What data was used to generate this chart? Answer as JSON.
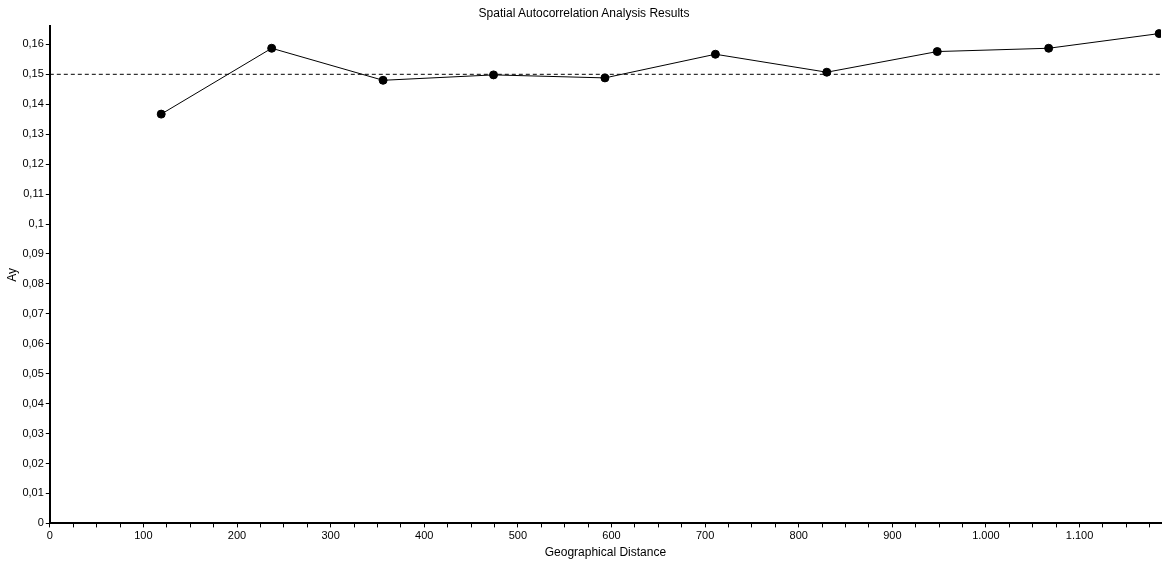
{
  "chart_data": {
    "type": "line",
    "title": "Spatial Autocorrelation Analysis Results",
    "xlabel": "Geographical Distance",
    "ylabel": "Ay",
    "x": [
      119,
      237,
      356,
      474,
      593,
      711,
      830,
      948,
      1067,
      1185
    ],
    "series": [
      {
        "color": "#000000",
        "values": [
          0.1367,
          0.1587,
          0.148,
          0.1498,
          0.1488,
          0.1567,
          0.1507,
          0.1576,
          0.1587,
          0.1636
        ]
      }
    ],
    "xlim": [
      0,
      1187
    ],
    "ylim": [
      0,
      0.166
    ],
    "xticks": [
      0,
      {
        "value": 25,
        "label": null
      },
      {
        "value": 50,
        "label": null
      },
      {
        "value": 75,
        "label": null
      },
      100,
      {
        "value": 125,
        "label": null
      },
      {
        "value": 150,
        "label": null
      },
      {
        "value": 175,
        "label": null
      },
      200,
      {
        "value": 225,
        "label": null
      },
      {
        "value": 250,
        "label": null
      },
      {
        "value": 275,
        "label": null
      },
      300,
      {
        "value": 325,
        "label": null
      },
      {
        "value": 350,
        "label": null
      },
      {
        "value": 375,
        "label": null
      },
      400,
      {
        "value": 425,
        "label": null
      },
      {
        "value": 450,
        "label": null
      },
      {
        "value": 475,
        "label": null
      },
      500,
      {
        "value": 525,
        "label": null
      },
      {
        "value": 550,
        "label": null
      },
      {
        "value": 575,
        "label": null
      },
      600,
      {
        "value": 625,
        "label": null
      },
      {
        "value": 650,
        "label": null
      },
      {
        "value": 675,
        "label": null
      },
      700,
      {
        "value": 725,
        "label": null
      },
      {
        "value": 750,
        "label": null
      },
      {
        "value": 775,
        "label": null
      },
      800,
      {
        "value": 825,
        "label": null
      },
      {
        "value": 850,
        "label": null
      },
      {
        "value": 875,
        "label": null
      },
      900,
      {
        "value": 925,
        "label": null
      },
      {
        "value": 950,
        "label": null
      },
      {
        "value": 975,
        "label": null
      },
      {
        "value": 1000,
        "label": "1.000"
      },
      {
        "value": 1025,
        "label": null
      },
      {
        "value": 1050,
        "label": null
      },
      {
        "value": 1075,
        "label": null
      },
      {
        "value": 1100,
        "label": "1.100"
      },
      {
        "value": 1125,
        "label": null
      },
      {
        "value": 1150,
        "label": null
      },
      {
        "value": 1175,
        "label": null
      }
    ],
    "yticks": [
      0,
      {
        "value": 0.01,
        "label": "0,01"
      },
      {
        "value": 0.02,
        "label": "0,02"
      },
      {
        "value": 0.03,
        "label": "0,03"
      },
      {
        "value": 0.04,
        "label": "0,04"
      },
      {
        "value": 0.05,
        "label": "0,05"
      },
      {
        "value": 0.06,
        "label": "0,06"
      },
      {
        "value": 0.07,
        "label": "0,07"
      },
      {
        "value": 0.08,
        "label": "0,08"
      },
      {
        "value": 0.09,
        "label": "0,09"
      },
      {
        "value": 0.1,
        "label": "0,1"
      },
      {
        "value": 0.11,
        "label": "0,11"
      },
      {
        "value": 0.12,
        "label": "0,12"
      },
      {
        "value": 0.13,
        "label": "0,13"
      },
      {
        "value": 0.14,
        "label": "0,14"
      },
      {
        "value": 0.15,
        "label": "0,15"
      },
      {
        "value": 0.16,
        "label": "0,16"
      }
    ],
    "ref_lines": [
      {
        "axis": "y",
        "value": 0.15,
        "color": "#000000",
        "line_style": "dashed"
      }
    ],
    "marker": "circle",
    "line_style": "solid",
    "grid": false,
    "legend": false
  }
}
